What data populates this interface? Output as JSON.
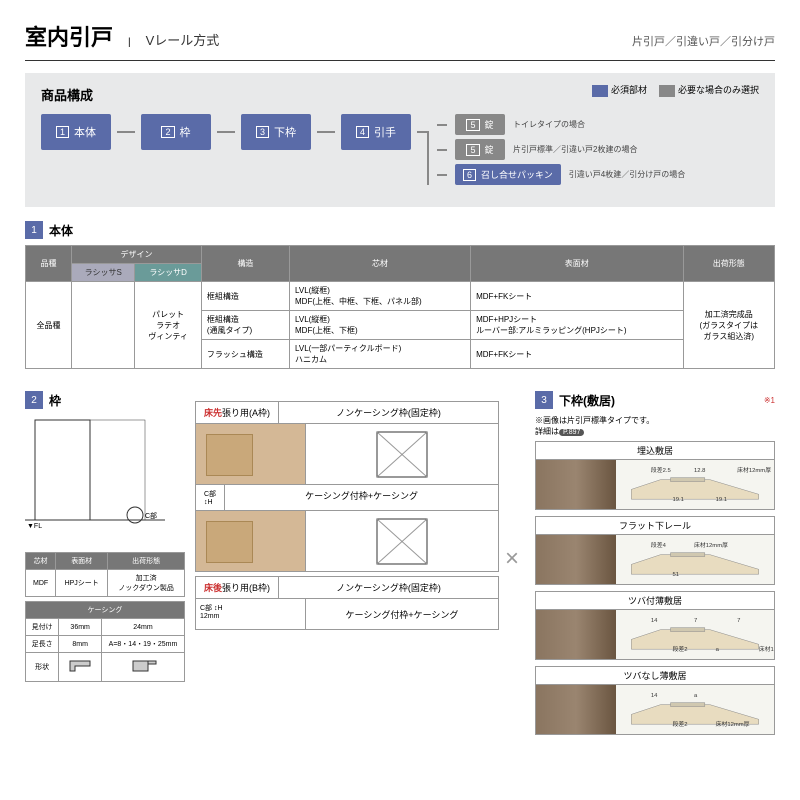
{
  "header": {
    "main": "室内引戸",
    "sep": "|",
    "sub": "Vレール方式",
    "right": "片引戸／引違い戸／引分け戸"
  },
  "composition": {
    "title": "商品構成",
    "legend": {
      "required": "必須部材",
      "optional": "必要な場合のみ選択"
    },
    "nodes": [
      "本体",
      "枠",
      "下枠",
      "引手"
    ],
    "branches": [
      {
        "num": "5",
        "label": "錠",
        "note": "トイレタイプの場合",
        "gray": true
      },
      {
        "num": "5",
        "label": "錠",
        "note": "片引戸標準／引違い戸2枚建の場合",
        "gray": true
      },
      {
        "num": "6",
        "label": "召し合せパッキン",
        "note": "引違い戸4枚建／引分け戸の場合",
        "gray": false
      }
    ]
  },
  "sec1": {
    "title": "本体",
    "headers": [
      "品種",
      "デザイン",
      "構造",
      "芯材",
      "表面材",
      "出荷形態"
    ],
    "subheaders": [
      "ラシッサS",
      "ラシッサD"
    ],
    "design_list": "パレット\nラテオ\nヴィンティ",
    "allspec": "全品種",
    "rows": [
      {
        "kouzo": "框組構造",
        "shin": "LVL(縦框)\nMDF(上框、中框、下框、パネル部)",
        "omote": "MDF+FKシート"
      },
      {
        "kouzo": "框組構造\n(通風タイプ)",
        "shin": "LVL(縦框)\nMDF(上框、下框)",
        "omote": "MDF+HPJシート\nルーバー部:アルミラッピング(HPJシート)"
      },
      {
        "kouzo": "フラッシュ構造",
        "shin": "LVL(一部パーティクルボード)\nハニカム",
        "omote": "MDF+FKシート"
      }
    ],
    "shipping": "加工済完成品\n(ガラスタイプは\nガラス組込済)"
  },
  "sec2": {
    "title": "枠",
    "table1": {
      "h": [
        "芯材",
        "表面材",
        "出荷形態"
      ],
      "r": [
        "MDF",
        "HPJシート",
        "加工済\nノックダウン製品"
      ]
    },
    "table2_title": "ケーシング",
    "table2": {
      "h1": "見付け",
      "h2": "足長さ",
      "h3": "形状",
      "v1a": "36mm",
      "v1b": "24mm",
      "v2a": "8mm",
      "v2b": "A=8・14・19・25mm",
      "shapeA": "36",
      "shapeB": "A"
    },
    "frames": {
      "a_tab": "床先張り用(A枠)",
      "b_tab": "床後張り用(B枠)",
      "fixed": "ノンケーシング枠(固定枠)",
      "casing": "ケーシング付枠+ケーシング",
      "cpart": "C部",
      "h": "H",
      "twelve": "12mm"
    }
  },
  "sec3": {
    "title": "下枠(敷居)",
    "asterisk": "※1",
    "note1": "※画像は片引戸標準タイプです。",
    "note2_pre": "詳細は",
    "note2_pill": "P.897",
    "items": [
      {
        "name": "埋込敷居",
        "dims": [
          "段差2.5",
          "19.1",
          "12.8",
          "19.1",
          "床材12mm厚"
        ]
      },
      {
        "name": "フラット下レール",
        "dims": [
          "段差4",
          "51",
          "床材12mm厚"
        ]
      },
      {
        "name": "ツバ付薄敷居",
        "dims": [
          "14",
          "段差2",
          "7",
          "a",
          "7",
          "床材12mm厚"
        ]
      },
      {
        "name": "ツバなし薄敷居",
        "dims": [
          "14",
          "段差2",
          "a",
          "床材12mm厚"
        ]
      }
    ]
  },
  "colors": {
    "blue": "#5a6ba8",
    "gray": "#888888",
    "teal": "#6a9b99",
    "wood": "#d4b896"
  }
}
